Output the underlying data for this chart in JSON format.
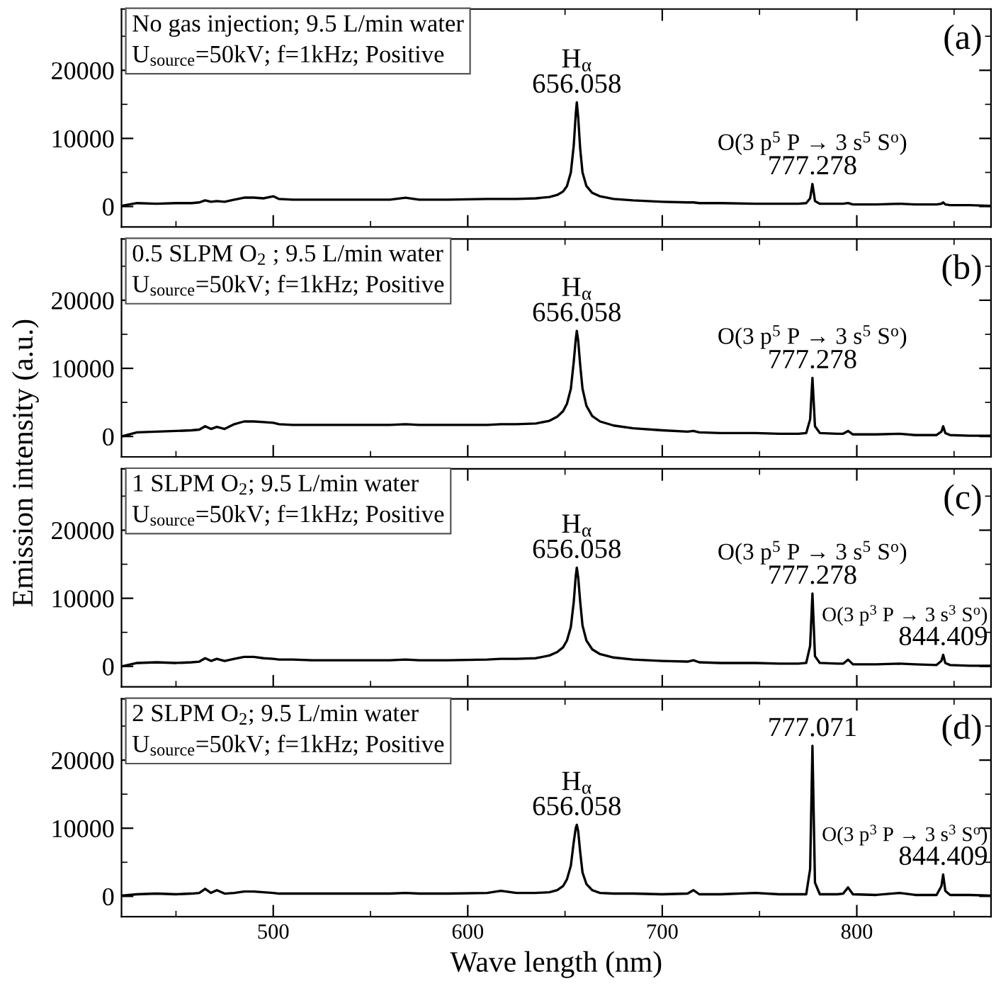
{
  "chart_data": [
    {
      "type": "line",
      "ylabel": "Emission intensity (a.u.)",
      "xlim": [
        422,
        869
      ],
      "ylim": [
        -3000,
        29000
      ],
      "yticks": [
        0,
        10000,
        20000
      ],
      "xticks": [
        500,
        600,
        700,
        800
      ],
      "tick_labels": "y",
      "x": [
        422,
        430,
        440,
        450,
        458,
        462,
        465,
        468,
        471,
        475,
        480,
        485,
        490,
        495,
        500,
        503,
        510,
        520,
        540,
        560,
        568,
        575,
        590,
        610,
        617,
        625,
        635,
        642,
        646,
        649,
        651,
        653,
        654.5,
        655.5,
        656.058,
        656.8,
        657.8,
        659,
        661,
        664,
        668,
        675,
        685,
        700,
        713,
        716,
        719,
        730,
        748,
        760,
        770,
        774,
        776,
        777.2,
        778.5,
        781,
        790,
        793,
        795.5,
        798,
        810,
        822,
        830,
        841,
        843.5,
        844.4,
        845.5,
        848,
        858,
        869
      ],
      "series": [
        {
          "color": "#000000",
          "values": [
            100,
            500,
            400,
            500,
            500,
            600,
            900,
            700,
            800,
            700,
            1000,
            1300,
            1300,
            1200,
            1500,
            1100,
            1000,
            1000,
            1000,
            1000,
            1300,
            1000,
            1000,
            1100,
            1100,
            1100,
            1200,
            1400,
            1700,
            2200,
            3000,
            5000,
            9000,
            13500,
            15300,
            13000,
            8500,
            5000,
            3000,
            2000,
            1500,
            1100,
            900,
            700,
            600,
            600,
            500,
            500,
            400,
            400,
            400,
            500,
            1200,
            3300,
            800,
            400,
            400,
            400,
            500,
            300,
            300,
            400,
            300,
            300,
            400,
            600,
            300,
            200,
            200,
            100
          ]
        }
      ],
      "annotations": [
        "No gas injection; 9.5 L/min water\nU$_{source}$=50kV; f=1kHz; Positive",
        "(a)",
        "H$_{α}$",
        "O(3 p$^{5}$ P → 3 s$^{5}$ S$^{o}$)",
        {
          "text": "656.058",
          "x": 656.058,
          "y": 15300
        },
        {
          "text": "777.278",
          "x": 777.2,
          "y": 3300
        }
      ]
    },
    {
      "type": "line",
      "xlim": [
        422,
        869
      ],
      "ylim": [
        -3000,
        29000
      ],
      "yticks": [
        0,
        10000,
        20000
      ],
      "xticks": [
        500,
        600,
        700,
        800
      ],
      "tick_labels": "y",
      "x": [
        422,
        430,
        440,
        450,
        458,
        462,
        465,
        468,
        471,
        475,
        480,
        485,
        490,
        495,
        500,
        503,
        510,
        520,
        540,
        560,
        568,
        575,
        590,
        610,
        617,
        625,
        635,
        642,
        646,
        649,
        651,
        653,
        654.5,
        655.5,
        656.058,
        656.8,
        657.8,
        659,
        661,
        664,
        668,
        675,
        685,
        700,
        713,
        716,
        719,
        730,
        748,
        760,
        770,
        774,
        776,
        777.2,
        778.5,
        781,
        790,
        793,
        795.5,
        798,
        810,
        822,
        830,
        841,
        843.5,
        844.4,
        845.5,
        848,
        858,
        869
      ],
      "series": [
        {
          "color": "#000000",
          "values": [
            0,
            600,
            700,
            800,
            900,
            1000,
            1500,
            1100,
            1400,
            1100,
            1800,
            2200,
            2200,
            2100,
            2000,
            1800,
            1700,
            1700,
            1700,
            1700,
            1800,
            1700,
            1700,
            1700,
            1800,
            1800,
            1900,
            2300,
            2900,
            3700,
            4800,
            7000,
            11000,
            14200,
            15500,
            14000,
            10500,
            7000,
            4500,
            3000,
            2200,
            1600,
            1200,
            900,
            700,
            800,
            600,
            500,
            500,
            400,
            400,
            500,
            2500,
            8600,
            1500,
            500,
            400,
            400,
            800,
            300,
            300,
            400,
            200,
            200,
            700,
            1500,
            500,
            200,
            100,
            100
          ]
        }
      ],
      "annotations": [
        "0.5 SLPM O$_{2}$ ; 9.5 L/min water\nU$_{source}$=50kV; f=1kHz; Positive",
        "(b)",
        "H$_{α}$",
        "O(3 p$^{5}$ P → 3 s$^{5}$ S$^{o}$)",
        {
          "text": "656.058",
          "x": 656.058,
          "y": 15500
        },
        {
          "text": "777.278",
          "x": 777.2,
          "y": 8600
        }
      ]
    },
    {
      "type": "line",
      "xlim": [
        422,
        869
      ],
      "ylim": [
        -3000,
        29000
      ],
      "yticks": [
        0,
        10000,
        20000
      ],
      "xticks": [
        500,
        600,
        700,
        800
      ],
      "tick_labels": "y",
      "x": [
        422,
        430,
        440,
        450,
        458,
        462,
        465,
        468,
        471,
        475,
        480,
        485,
        490,
        495,
        500,
        503,
        510,
        520,
        540,
        560,
        568,
        575,
        590,
        610,
        617,
        625,
        635,
        642,
        646,
        649,
        651,
        653,
        654.5,
        655.5,
        656.058,
        656.8,
        657.8,
        659,
        661,
        664,
        668,
        675,
        685,
        700,
        713,
        716,
        719,
        730,
        748,
        760,
        770,
        774,
        776,
        777.2,
        778.5,
        781,
        790,
        793,
        795.5,
        798,
        810,
        822,
        830,
        841,
        843.5,
        844.4,
        845.5,
        848,
        858,
        869
      ],
      "series": [
        {
          "color": "#000000",
          "values": [
            0,
            500,
            600,
            500,
            600,
            700,
            1200,
            800,
            1100,
            800,
            1100,
            1400,
            1400,
            1200,
            1100,
            1000,
            1000,
            900,
            900,
            900,
            1000,
            900,
            900,
            1000,
            1100,
            1100,
            1200,
            1600,
            2100,
            2800,
            3800,
            5800,
            9500,
            13200,
            14500,
            13000,
            9500,
            6000,
            3800,
            2500,
            1800,
            1300,
            1000,
            800,
            700,
            900,
            600,
            500,
            500,
            400,
            400,
            500,
            3000,
            10700,
            1500,
            500,
            400,
            400,
            1000,
            300,
            300,
            400,
            300,
            200,
            800,
            1700,
            500,
            200,
            100,
            100
          ]
        }
      ],
      "annotations": [
        "1 SLPM O$_{2}$; 9.5 L/min water\nU$_{source}$=50kV; f=1kHz; Positive",
        "(c)",
        "H$_{α}$",
        "O(3 p$^{5}$ P → 3 s$^{5}$ S$^{o}$)",
        "O(3 p$^{3}$ P → 3 s$^{3}$ S$^{o}$)",
        {
          "text": "656.058",
          "x": 656.058,
          "y": 14500
        },
        {
          "text": "777.278",
          "x": 777.2,
          "y": 10700
        },
        {
          "text": "844.409",
          "x": 844.4,
          "y": 1700
        }
      ]
    },
    {
      "type": "line",
      "xlabel": "Wave length (nm)",
      "xlim": [
        422,
        869
      ],
      "ylim": [
        -3000,
        29000
      ],
      "yticks": [
        0,
        10000,
        20000
      ],
      "xticks": [
        500,
        600,
        700,
        800
      ],
      "x": [
        422,
        430,
        440,
        450,
        458,
        462,
        465,
        468,
        471,
        475,
        480,
        485,
        490,
        495,
        500,
        503,
        510,
        520,
        540,
        560,
        568,
        575,
        590,
        610,
        617,
        625,
        635,
        642,
        646,
        649,
        651,
        653,
        654.5,
        655.5,
        656.058,
        656.8,
        657.8,
        659,
        661,
        664,
        668,
        675,
        685,
        700,
        713,
        716,
        719,
        730,
        748,
        760,
        770,
        774,
        776,
        777.2,
        778.5,
        781,
        790,
        793,
        795.5,
        798,
        810,
        822,
        830,
        841,
        843.5,
        844.4,
        845.5,
        848,
        858,
        869
      ],
      "series": [
        {
          "color": "#000000",
          "values": [
            100,
            300,
            400,
            300,
            400,
            500,
            1100,
            500,
            900,
            400,
            500,
            700,
            700,
            600,
            500,
            400,
            400,
            400,
            400,
            400,
            500,
            400,
            400,
            500,
            800,
            500,
            500,
            600,
            900,
            1500,
            2500,
            4500,
            8000,
            10000,
            10500,
            9500,
            6500,
            3500,
            1800,
            900,
            500,
            400,
            400,
            300,
            400,
            900,
            300,
            300,
            500,
            300,
            300,
            300,
            4000,
            22100,
            2000,
            300,
            300,
            400,
            1300,
            300,
            200,
            500,
            200,
            200,
            1500,
            3200,
            800,
            200,
            200,
            100
          ]
        }
      ],
      "annotations": [
        "2 SLPM O$_{2}$; 9.5 L/min water\nU$_{source}$=50kV; f=1kHz; Positive",
        "(d)",
        "H$_{α}$",
        null,
        "O(3 p$^{3}$ P → 3 s$^{3}$ S$^{o}$)",
        {
          "text": "656.058",
          "x": 656.058,
          "y": 10500
        },
        {
          "text": "777.071",
          "x": 777.2,
          "y": 22100
        },
        {
          "text": "844.409",
          "x": 844.4,
          "y": 3200
        }
      ]
    }
  ]
}
